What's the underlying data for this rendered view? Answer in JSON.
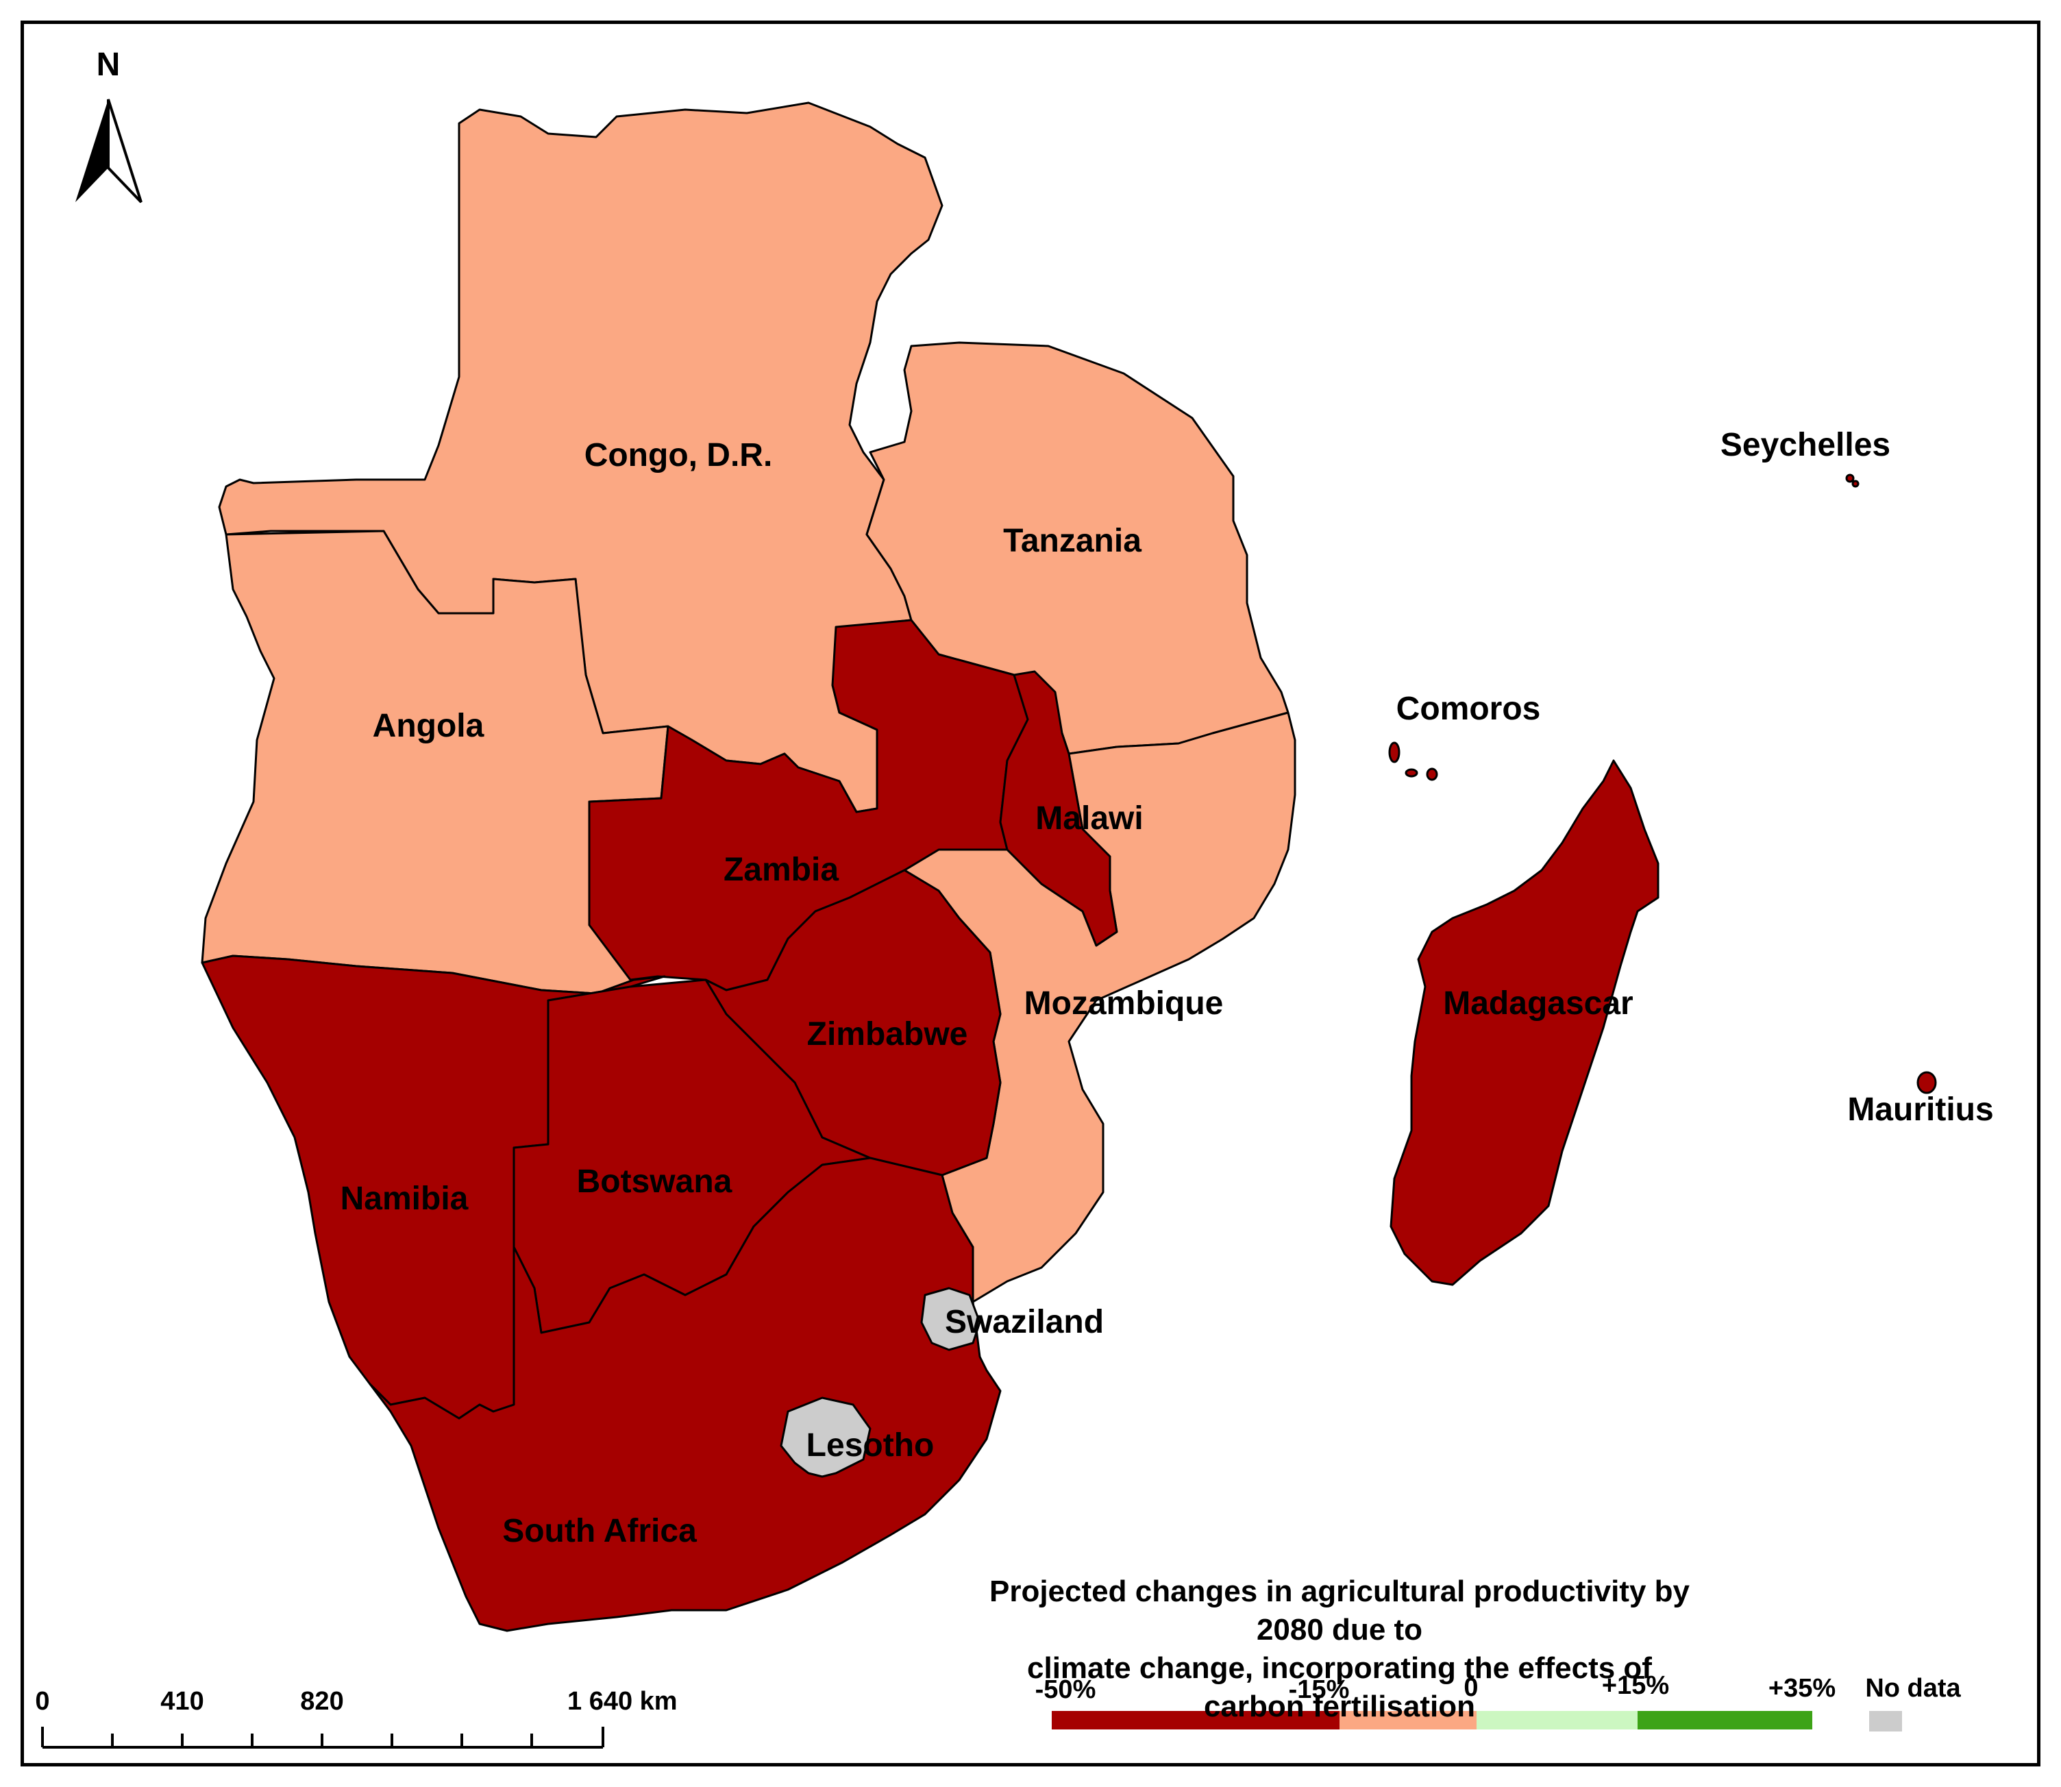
{
  "map": {
    "north_label": "N",
    "countries": [
      {
        "name": "Congo, D.R.",
        "category": "neg15_to_0"
      },
      {
        "name": "Tanzania",
        "category": "neg15_to_0"
      },
      {
        "name": "Angola",
        "category": "neg15_to_0"
      },
      {
        "name": "Mozambique",
        "category": "neg15_to_0"
      },
      {
        "name": "Zambia",
        "category": "neg50_to_neg15"
      },
      {
        "name": "Malawi",
        "category": "neg50_to_neg15"
      },
      {
        "name": "Zimbabwe",
        "category": "neg50_to_neg15"
      },
      {
        "name": "Namibia",
        "category": "neg50_to_neg15"
      },
      {
        "name": "Botswana",
        "category": "neg50_to_neg15"
      },
      {
        "name": "South Africa",
        "category": "neg50_to_neg15"
      },
      {
        "name": "Madagascar",
        "category": "neg50_to_neg15"
      },
      {
        "name": "Comoros",
        "category": "neg50_to_neg15"
      },
      {
        "name": "Mauritius",
        "category": "neg50_to_neg15"
      },
      {
        "name": "Seychelles",
        "category": "neg50_to_neg15"
      },
      {
        "name": "Swaziland",
        "category": "no_data"
      },
      {
        "name": "Lesotho",
        "category": "no_data"
      }
    ]
  },
  "scale_bar": {
    "ticks": [
      "0",
      "410",
      "820",
      "1 640 km"
    ]
  },
  "legend": {
    "title_line1": "Projected changes in agricultural productivity by 2080 due to",
    "title_line2": "climate change, incorporating the effects of carbon fertilisation",
    "breaks": [
      "-50%",
      "-15%",
      "0",
      "+15%",
      "+35%"
    ],
    "no_data_label": "No data",
    "colors": {
      "neg50_to_neg15": "#a50000",
      "neg15_to_0": "#fba883",
      "zero_to_15": "#ccf7c1",
      "fifteen_to_35": "#3da317",
      "no_data": "#cccccc"
    }
  }
}
